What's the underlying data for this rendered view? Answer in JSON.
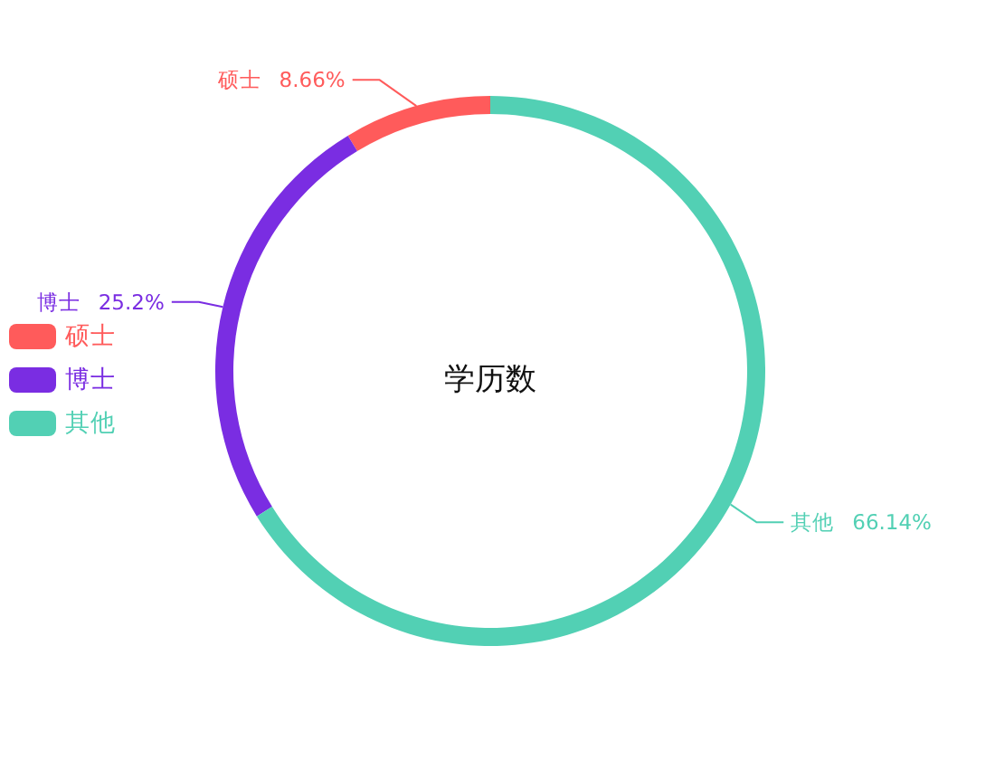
{
  "chart_data": {
    "type": "donut",
    "title": "学历数",
    "categories": [
      "硕士",
      "博士",
      "其他"
    ],
    "values": [
      8.66,
      25.2,
      66.14
    ],
    "colors": [
      "#ff5b5b",
      "#7a2de2",
      "#52d0b4"
    ],
    "value_labels": [
      "8.66%",
      "25.2%",
      "66.14%"
    ],
    "legend": "left"
  }
}
